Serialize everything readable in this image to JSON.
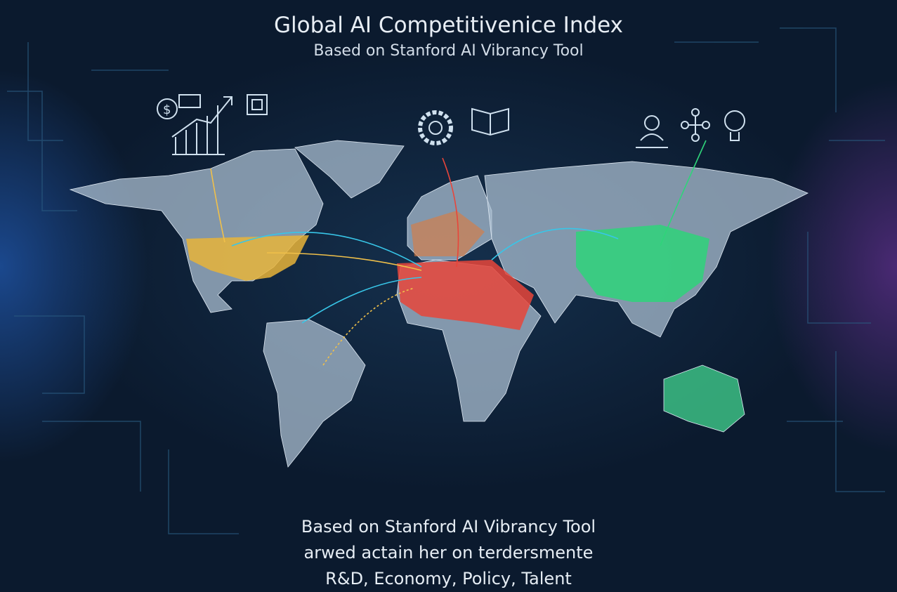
{
  "header": {
    "title": "Global AI Competitivenice Index",
    "subtitle": "Based on Stanford AI Vibrancy Tool"
  },
  "footer": {
    "line1": "Based on Stanford AI Vibrancy Tool",
    "line2": "arwed actain her on terdersmente",
    "line3": "R&D, Economy, Policy, Talent"
  },
  "icons": [
    "dollar-icon",
    "growth-chart-icon",
    "chip-icon",
    "gear-icon",
    "book-icon",
    "person-laptop-icon",
    "network-icon",
    "lightbulb-icon"
  ],
  "colors": {
    "north_america": "#e8b43a",
    "europe_africa": "#e8453a",
    "china": "#2fd47a",
    "australia": "#3fc98a",
    "land": "#9fb3c8",
    "lines": "#38c6e8"
  }
}
